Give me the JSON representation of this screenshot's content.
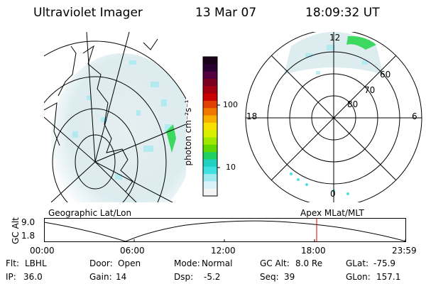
{
  "header": {
    "instrument": "Ultraviolet Imager",
    "date": "13 Mar 07",
    "time": "18:09:32 UT"
  },
  "colorbar": {
    "unit_label": "photon cm⁻²s⁻¹",
    "tick_labels": [
      "100",
      "10"
    ],
    "colors": [
      "#1a0018",
      "#2a0030",
      "#550040",
      "#7a0020",
      "#a00010",
      "#c80000",
      "#e04000",
      "#f07800",
      "#f8b000",
      "#f8e000",
      "#d8f000",
      "#a0e800",
      "#60d800",
      "#20d060",
      "#20d0c0",
      "#40e0e0",
      "#a0e8f0",
      "#d8f0f8",
      "#f4f4f4"
    ]
  },
  "left_panel": {
    "label": "Geographic Lat/Lon"
  },
  "right_panel": {
    "label": "Apex MLat/MLT",
    "mlt_labels": {
      "top": "12",
      "left": "18",
      "right": "6",
      "bottom": "0"
    },
    "mlat_labels": [
      "60",
      "70",
      "80"
    ]
  },
  "gc_alt_plot": {
    "axis_label": "GC Alt",
    "y_ticks": [
      "9.0",
      "1.8"
    ],
    "time_ticks": [
      "00:00",
      "06:00",
      "12:00",
      "18:00",
      "23:59"
    ],
    "current_time_marker_color": "#e00000"
  },
  "footer": {
    "row1": [
      {
        "label": "Flt:",
        "value": "LBHL"
      },
      {
        "label": "Door:",
        "value": "Open"
      },
      {
        "label": "Mode:",
        "value": "Normal"
      },
      {
        "label": "GC Alt:",
        "value": "8.0 Re"
      },
      {
        "label": "GLat:",
        "value": "-75.9"
      }
    ],
    "row2": [
      {
        "label": "IP:",
        "value": "36.0"
      },
      {
        "label": "Gain:",
        "value": "14"
      },
      {
        "label": "Dsp:",
        "value": "-5.2"
      },
      {
        "label": "Seq:",
        "value": "39"
      },
      {
        "label": "GLon:",
        "value": "157.1"
      }
    ]
  }
}
